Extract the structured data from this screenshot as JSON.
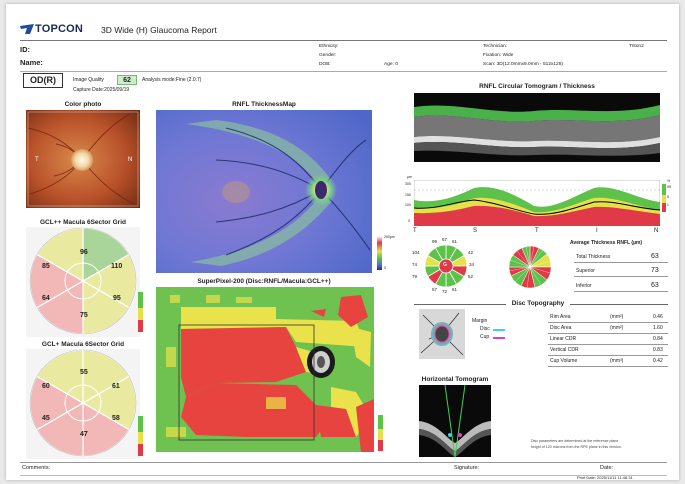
{
  "header": {
    "logo_text": "TOPCON",
    "report_title": "3D Wide (H) Glaucoma Report",
    "id_label": "ID:",
    "name_label": "Name:",
    "ethnicity_label": "Ethnicity:",
    "gender_label": "Gender:",
    "dob_label": "DOB:",
    "age_label": "Age: 0",
    "technician_label": "Technician:",
    "fixation_label": "Fixation: Wide",
    "scan_label": "Scan: 3D(12.0mmx9.0mm - 512x128)",
    "device": "Triton2"
  },
  "eye": {
    "badge": "OD(R)",
    "image_quality_label": "Image Quality",
    "image_quality_value": "62",
    "analysis_mode": "Analysis mode:Fine (2.0.7)",
    "capture_date": "Capture Date:2025/09/19"
  },
  "titles": {
    "color_photo": "Color photo",
    "rnfl_map": "RNFL ThicknessMap",
    "gcl_pp": "GCL++ Macula 6Sector Grid",
    "gcl_p": "GCL+ Macula 6Sector Grid",
    "superpixel": "SuperPixel-200 (Disc:RNFL/Macula:GCL++)",
    "rnfl_tomo": "RNFL Circular Tomogram / Thickness",
    "disc_topo": "Disc Topography",
    "horiz_tomo": "Horizontal Tomogram"
  },
  "photo_labels": {
    "t": "T",
    "n": "N"
  },
  "gcl_pp_values": {
    "s_left": "85",
    "s_top": "96",
    "s_right": "110",
    "i_left": "64",
    "i_right": "95",
    "i_bottom": "75"
  },
  "gcl_p_values": {
    "s_left": "60",
    "s_top": "55",
    "s_right": "61",
    "i_left": "45",
    "i_right": "58",
    "i_bottom": "47"
  },
  "colorbar": {
    "top": "250µm",
    "bottom": "0"
  },
  "tsnit_axis": {
    "y_top": "300",
    "y_mid": "150",
    "y_low": "100",
    "y_zero": "0",
    "pct": [
      "%",
      "95",
      "5",
      "1"
    ],
    "x_labels": [
      "T",
      "S",
      "T",
      "I",
      "N"
    ]
  },
  "clock": {
    "values": [
      "99",
      "67",
      "61",
      "104",
      "42",
      "74",
      "34",
      "79",
      "52",
      "57",
      "72",
      "61"
    ],
    "center": "G"
  },
  "avg_thickness": {
    "title": "Average Thickness RNFL (µm)",
    "rows": [
      {
        "label": "Total Thickness",
        "value": "63"
      },
      {
        "label": "Superior",
        "value": "73"
      },
      {
        "label": "Inferior",
        "value": "63"
      }
    ]
  },
  "disc": {
    "margin_label": "Margin",
    "disc_label": "Disc",
    "cup_label": "Cup",
    "rows": [
      {
        "label": "Rim Area",
        "unit": "(mm²)",
        "value": "0.46"
      },
      {
        "label": "Disc Area",
        "unit": "(mm²)",
        "value": "1.60"
      },
      {
        "label": "Linear CDR",
        "unit": "",
        "value": "0.84"
      },
      {
        "label": "Vertical CDR",
        "unit": "",
        "value": "0.83"
      },
      {
        "label": "Cup Volume",
        "unit": "(mm³)",
        "value": "0.42"
      }
    ],
    "note_line1": "Disc parameters are determined at the reference plane",
    "note_line2": "height of 120 microns from the RPE plane in this version."
  },
  "footer": {
    "comments": "Comments:",
    "signature": "Signature:",
    "date": "Date:",
    "print_date": "Print Date: 2025/11/11 11:46:31"
  },
  "colors": {
    "normal": "#5cc24a",
    "borderline": "#e6e04b",
    "outside": "#e03a48",
    "cup": "#e040c8",
    "disc": "#3cd0e0"
  }
}
